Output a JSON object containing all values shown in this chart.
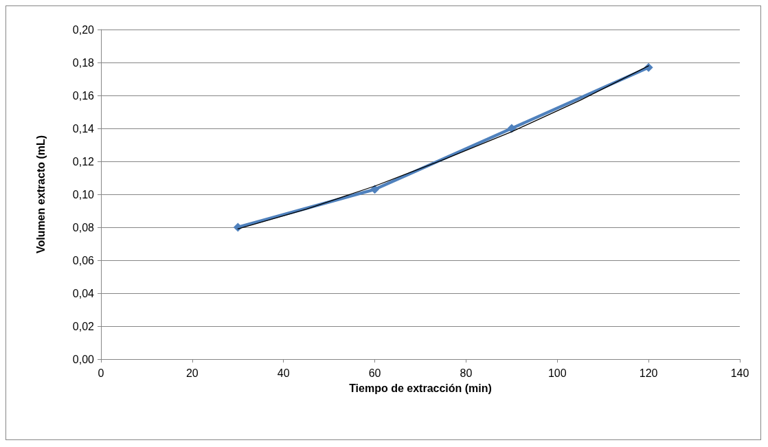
{
  "chart_data": {
    "type": "line",
    "xlabel": "Tiempo de extracción (min)",
    "ylabel": "Volumen extracto (mL)",
    "xlim": [
      0,
      140
    ],
    "xticks": [
      0,
      20,
      40,
      60,
      80,
      100,
      120,
      140
    ],
    "ylim": [
      0,
      0.2
    ],
    "yticks": [
      {
        "value": 0,
        "label": "0,00"
      },
      {
        "value": 0.02,
        "label": "0,02"
      },
      {
        "value": 0.04,
        "label": "0,04"
      },
      {
        "value": 0.06,
        "label": "0,06"
      },
      {
        "value": 0.08,
        "label": "0,08"
      },
      {
        "value": 0.1,
        "label": "0,10"
      },
      {
        "value": 0.12,
        "label": "0,12"
      },
      {
        "value": 0.14,
        "label": "0,14"
      },
      {
        "value": 0.16,
        "label": "0,16"
      },
      {
        "value": 0.18,
        "label": "0,18"
      },
      {
        "value": 0.2,
        "label": "0,20"
      }
    ],
    "grid": "y",
    "series": [
      {
        "color": "#4f81bd",
        "marker": "diamond",
        "x": [
          30,
          60,
          90,
          120
        ],
        "values": [
          0.08,
          0.103,
          0.14,
          0.177
        ]
      },
      {
        "color": "#000000",
        "marker": "none",
        "x": [
          30,
          45,
          60,
          75,
          90,
          105,
          120
        ],
        "values": [
          0.079,
          0.091,
          0.105,
          0.121,
          0.138,
          0.157,
          0.178
        ]
      }
    ]
  }
}
